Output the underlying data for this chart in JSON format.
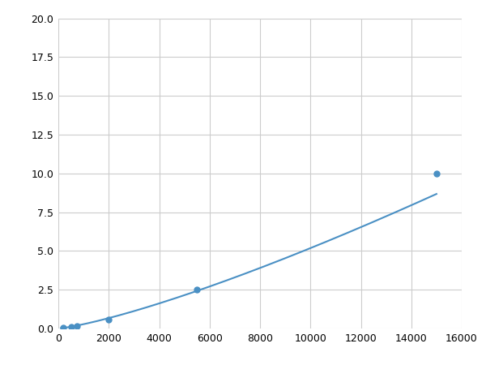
{
  "x_points": [
    200,
    500,
    750,
    2000,
    5500,
    15000
  ],
  "y_points": [
    0.05,
    0.1,
    0.15,
    0.6,
    2.5,
    10.0
  ],
  "line_color": "#4a90c4",
  "marker_color": "#4a90c4",
  "marker_size": 5,
  "xlim": [
    0,
    16000
  ],
  "ylim": [
    0,
    20
  ],
  "xticks": [
    0,
    2000,
    4000,
    6000,
    8000,
    10000,
    12000,
    14000,
    16000
  ],
  "yticks": [
    0.0,
    2.5,
    5.0,
    7.5,
    10.0,
    12.5,
    15.0,
    17.5,
    20.0
  ],
  "grid": true,
  "background_color": "#ffffff",
  "figsize": [
    6.0,
    4.5
  ],
  "dpi": 100
}
